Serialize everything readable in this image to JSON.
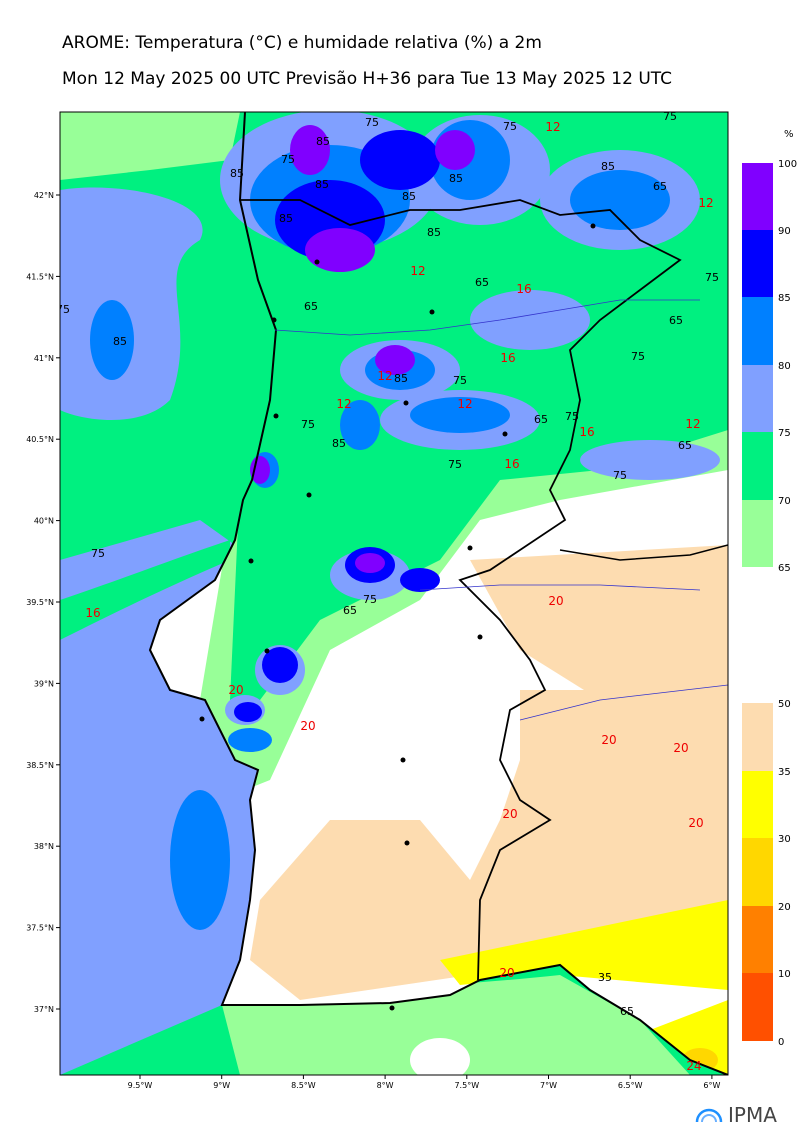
{
  "header": {
    "title": "AROME: Temperatura (°C) e humidade relativa (%) a 2m",
    "subtitle": "Mon 12 May 2025 00 UTC Previsão H+36 para Tue 13 May 2025 12 UTC"
  },
  "map": {
    "lat_labels": [
      "42°N",
      "41.5°N",
      "41°N",
      "40.5°N",
      "40°N",
      "39.5°N",
      "39°N",
      "38.5°N",
      "38°N",
      "37.5°N",
      "37°N"
    ],
    "lon_labels": [
      "9.5°W",
      "9°W",
      "8.5°W",
      "8°W",
      "7.5°W",
      "7°W",
      "6.5°W",
      "6°W"
    ],
    "humidity_contour_labels": [
      "75",
      "85",
      "75",
      "85",
      "85",
      "85",
      "85",
      "85",
      "65",
      "85",
      "85",
      "65",
      "75",
      "65",
      "65",
      "75",
      "85",
      "75",
      "75",
      "85",
      "65",
      "75",
      "65",
      "75",
      "75",
      "75",
      "75",
      "65",
      "85",
      "75",
      "35",
      "65",
      "75",
      "75"
    ],
    "temperature_contour_labels": [
      "12",
      "12",
      "12",
      "16",
      "16",
      "12",
      "12",
      "12",
      "16",
      "12",
      "16",
      "16",
      "20",
      "20",
      "20",
      "20",
      "20",
      "20",
      "20",
      "20",
      "24"
    ]
  },
  "humidity_colorbar": {
    "unit": "%",
    "ticks": [
      "100",
      "90",
      "85",
      "80",
      "75",
      "70",
      "65"
    ]
  },
  "temperature_colorbar": {
    "ticks": [
      "50",
      "35",
      "30",
      "20",
      "10",
      "0"
    ]
  },
  "logo": "IPMA"
}
